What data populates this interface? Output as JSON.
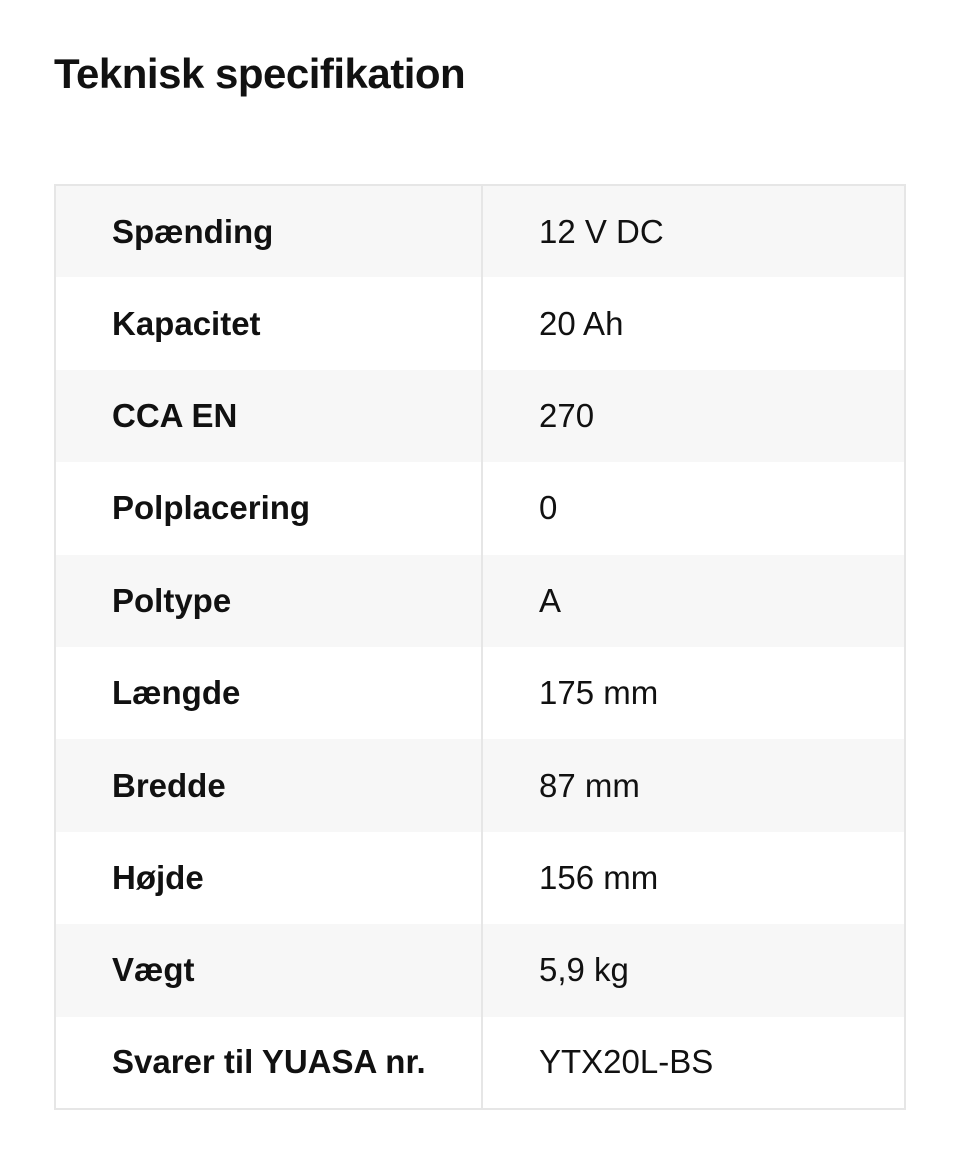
{
  "title": "Teknisk specifikation",
  "specs": [
    {
      "label": "Spænding",
      "value": "12 V DC"
    },
    {
      "label": "Kapacitet",
      "value": "20 Ah"
    },
    {
      "label": "CCA EN",
      "value": "270"
    },
    {
      "label": "Polplacering",
      "value": "0"
    },
    {
      "label": "Poltype",
      "value": "A"
    },
    {
      "label": "Længde",
      "value": "175 mm"
    },
    {
      "label": "Bredde",
      "value": "87 mm"
    },
    {
      "label": "Højde",
      "value": "156 mm"
    },
    {
      "label": "Vægt",
      "value": "5,9 kg"
    },
    {
      "label": "Svarer til YUASA nr.",
      "value": "YTX20L-BS"
    }
  ]
}
